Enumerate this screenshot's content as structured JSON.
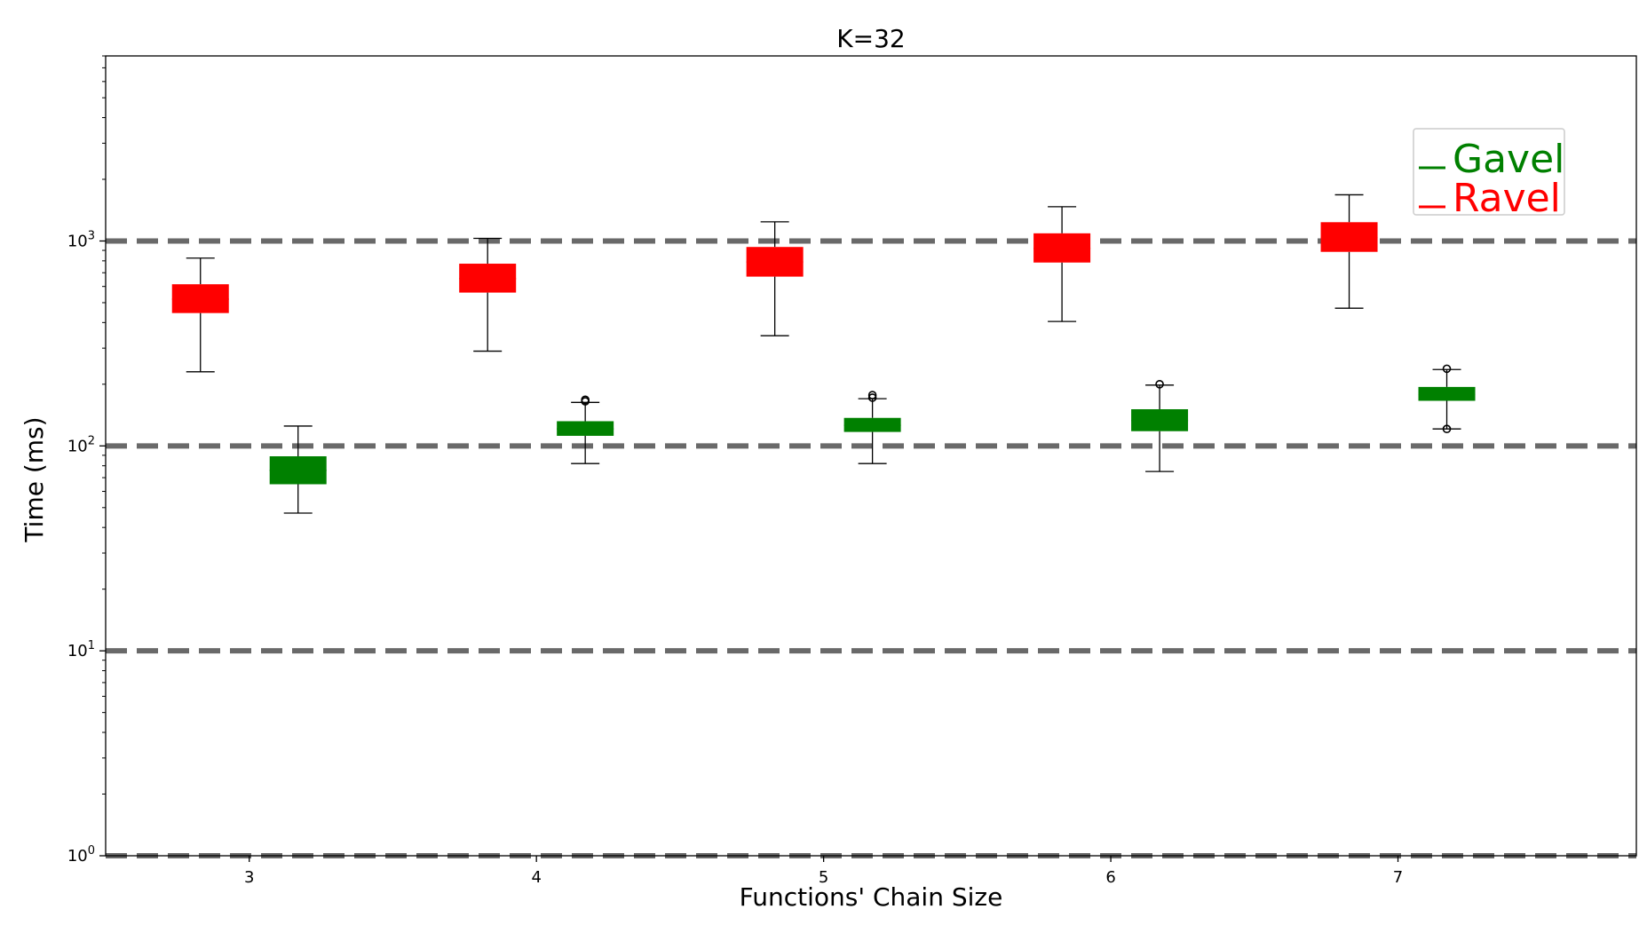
{
  "chart_data": {
    "type": "box",
    "title": "K=32",
    "xlabel": "Functions' Chain Size",
    "ylabel": "Time (ms)",
    "yscale": "log",
    "ylim": [
      1,
      8000
    ],
    "xlim": [
      2.5,
      7.83
    ],
    "categories": [
      3,
      4,
      5,
      6,
      7
    ],
    "y_ticks": [
      {
        "base": "10",
        "exp": "0",
        "value": 1
      },
      {
        "base": "10",
        "exp": "1",
        "value": 10
      },
      {
        "base": "10",
        "exp": "2",
        "value": 100
      },
      {
        "base": "10",
        "exp": "3",
        "value": 1000
      }
    ],
    "reference_lines": [
      1,
      10,
      100,
      1000
    ],
    "legend": {
      "placement": "top-right"
    },
    "series": [
      {
        "name": "Gavel",
        "color": "#008000",
        "boxes": [
          {
            "x": 3.17,
            "whisker_low": 47,
            "q1": 65,
            "q3": 89,
            "whisker_high": 125,
            "median": 76,
            "outliers": []
          },
          {
            "x": 4.17,
            "whisker_low": 82,
            "q1": 112,
            "q3": 132,
            "whisker_high": 163,
            "median": 121,
            "outliers": [
              165,
              168
            ]
          },
          {
            "x": 5.17,
            "whisker_low": 82,
            "q1": 117,
            "q3": 137,
            "whisker_high": 170,
            "median": 126,
            "outliers": [
              172,
              177
            ]
          },
          {
            "x": 6.17,
            "whisker_low": 75,
            "q1": 118,
            "q3": 151,
            "whisker_high": 198,
            "median": 133,
            "outliers": [
              200
            ]
          },
          {
            "x": 7.17,
            "whisker_low": 121,
            "q1": 166,
            "q3": 194,
            "whisker_high": 236,
            "median": 178,
            "outliers": [
              121,
              238
            ]
          }
        ]
      },
      {
        "name": "Ravel",
        "color": "#ff0000",
        "boxes": [
          {
            "x": 2.83,
            "whisker_low": 230,
            "q1": 445,
            "q3": 615,
            "whisker_high": 825,
            "median": 520,
            "outliers": []
          },
          {
            "x": 3.83,
            "whisker_low": 290,
            "q1": 560,
            "q3": 775,
            "whisker_high": 1030,
            "median": 655,
            "outliers": []
          },
          {
            "x": 4.83,
            "whisker_low": 345,
            "q1": 670,
            "q3": 935,
            "whisker_high": 1240,
            "median": 790,
            "outliers": []
          },
          {
            "x": 5.83,
            "whisker_low": 405,
            "q1": 785,
            "q3": 1090,
            "whisker_high": 1470,
            "median": 920,
            "outliers": []
          },
          {
            "x": 6.83,
            "whisker_low": 470,
            "q1": 885,
            "q3": 1235,
            "whisker_high": 1680,
            "median": 1040,
            "outliers": []
          }
        ]
      }
    ]
  }
}
